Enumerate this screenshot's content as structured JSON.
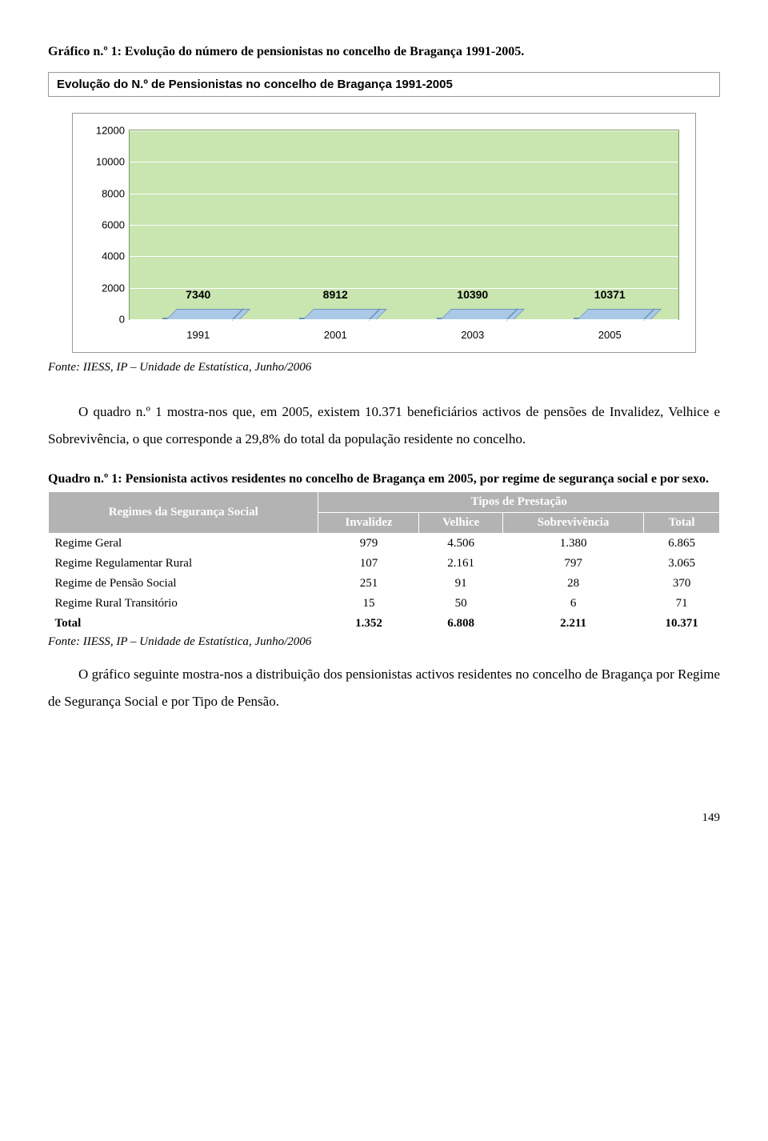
{
  "graphTitle": "Gráfico n.º 1: Evolução do número de pensionistas no concelho de Bragança 1991-2005.",
  "chart": {
    "box_title": "Evolução do N.º de Pensionistas no concelho de Bragança 1991-2005",
    "type": "bar",
    "categories": [
      "1991",
      "2001",
      "2003",
      "2005"
    ],
    "values": [
      7340,
      8912,
      10390,
      10371
    ],
    "value_labels": [
      "7340",
      "8912",
      "10390",
      "10371"
    ],
    "ymax": 12000,
    "yticks": [
      0,
      2000,
      4000,
      6000,
      8000,
      10000,
      12000
    ],
    "ytick_labels": [
      "0",
      "2000",
      "4000",
      "6000",
      "8000",
      "10000",
      "12000"
    ],
    "bar_fill_top": "#c4d9ee",
    "bar_fill_bottom": "#8eb8e0",
    "plot_bg": "#c9e5b0"
  },
  "fonteChart": "Fonte: IIESS, IP – Unidade de Estatística, Junho/2006",
  "para1": "O quadro n.º 1 mostra-nos que, em 2005, existem 10.371 beneficiários activos de pensões de Invalidez, Velhice e Sobrevivência, o que corresponde a 29,8% do total da população residente no concelho.",
  "tableTitle": "Quadro n.º 1: Pensionista activos residentes no concelho de Bragança em 2005, por regime de segurança social e por sexo.",
  "table": {
    "header_group_left": "Regimes da Segurança Social",
    "header_group_right": "Tipos de Prestação",
    "cols": [
      "Invalidez",
      "Velhice",
      "Sobrevivência",
      "Total"
    ],
    "rows": [
      {
        "label": "Regime Geral",
        "cells": [
          "979",
          "4.506",
          "1.380",
          "6.865"
        ]
      },
      {
        "label": "Regime Regulamentar Rural",
        "cells": [
          "107",
          "2.161",
          "797",
          "3.065"
        ]
      },
      {
        "label": "Regime de Pensão Social",
        "cells": [
          "251",
          "91",
          "28",
          "370"
        ]
      },
      {
        "label": "Regime Rural Transitório",
        "cells": [
          "15",
          "50",
          "6",
          "71"
        ]
      }
    ],
    "total": {
      "label": "Total",
      "cells": [
        "1.352",
        "6.808",
        "2.211",
        "10.371"
      ]
    }
  },
  "fonteTable": "Fonte: IIESS, IP – Unidade de Estatística, Junho/2006",
  "para2": "O gráfico seguinte mostra-nos a distribuição dos pensionistas activos residentes no concelho de Bragança por Regime de Segurança Social e por Tipo de Pensão.",
  "pageNum": "149"
}
